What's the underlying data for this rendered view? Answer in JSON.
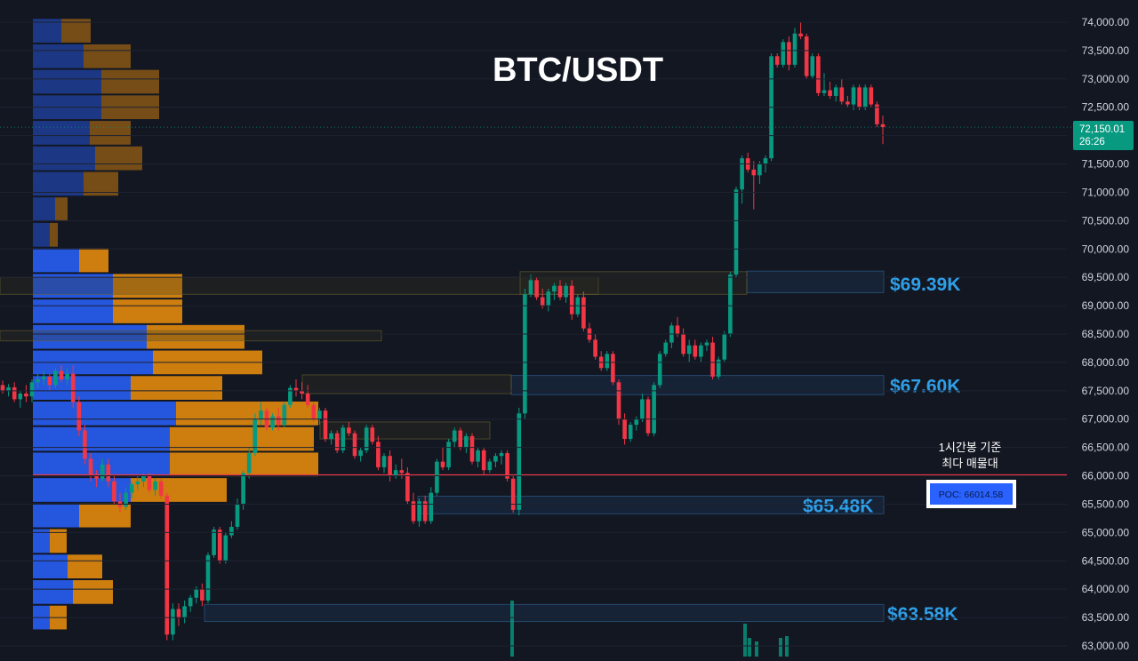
{
  "chart_data": {
    "type": "candlestick",
    "title": "BTC/USDT",
    "y_axis": {
      "ylim": [
        62900,
        74050
      ],
      "ticks": [
        63000,
        63500,
        64000,
        64500,
        65000,
        65500,
        66000,
        66500,
        67000,
        67500,
        68000,
        68500,
        69000,
        69500,
        70000,
        70500,
        71000,
        71500,
        72000,
        72500,
        73000,
        73500,
        74000
      ],
      "tick_labels": [
        "63,000.00",
        "63,500.00",
        "64,000.00",
        "64,500.00",
        "65,000.00",
        "65,500.00",
        "66,000.00",
        "66,500.00",
        "67,000.00",
        "67,500.00",
        "68,000.00",
        "68,500.00",
        "69,000.00",
        "69,500.00",
        "70,000.00",
        "70,500.00",
        "71,000.00",
        "71,500.00",
        "72,000.00",
        "72,500.00",
        "73,000.00",
        "73,500.00",
        "74,000.00"
      ]
    },
    "last_price": {
      "value": 72150.01,
      "label": "72,150.01",
      "countdown": "26:26",
      "color": "#089981"
    },
    "poc": {
      "value": 66014.58,
      "label": "POC: 66014.58",
      "annotation_line1": "1시간봉 기준",
      "annotation_line2": "최다 매물대",
      "color": "#f23645"
    },
    "levels": [
      {
        "value": 69390,
        "label": "$69.39K",
        "zone": [
          69230,
          69610
        ]
      },
      {
        "value": 67600,
        "label": "$67.60K",
        "zone": [
          67430,
          67770
        ]
      },
      {
        "value": 65480,
        "label": "$65.48K",
        "zone": [
          65330,
          65640
        ]
      },
      {
        "value": 63580,
        "label": "$63.58K",
        "zone": [
          63430,
          63730
        ]
      }
    ],
    "candles": [
      [
        67600,
        67680,
        67450,
        67500
      ],
      [
        67500,
        67620,
        67400,
        67560
      ],
      [
        67560,
        67650,
        67300,
        67350
      ],
      [
        67350,
        67500,
        67200,
        67450
      ],
      [
        67450,
        67600,
        67300,
        67400
      ],
      [
        67400,
        67700,
        67300,
        67650
      ],
      [
        67650,
        67800,
        67550,
        67700
      ],
      [
        67700,
        67850,
        67600,
        67750
      ],
      [
        67750,
        67800,
        67500,
        67600
      ],
      [
        67600,
        67900,
        67550,
        67850
      ],
      [
        67850,
        67950,
        67650,
        67700
      ],
      [
        67700,
        67900,
        67600,
        67800
      ],
      [
        67800,
        67950,
        67200,
        67300
      ],
      [
        67300,
        67400,
        66700,
        66800
      ],
      [
        66800,
        66900,
        66200,
        66300
      ],
      [
        66300,
        66400,
        65900,
        66000
      ],
      [
        66000,
        66100,
        65800,
        65950
      ],
      [
        65950,
        66300,
        65900,
        66200
      ],
      [
        66200,
        66300,
        65800,
        65900
      ],
      [
        65900,
        66000,
        65500,
        65550
      ],
      [
        65550,
        65700,
        65350,
        65450
      ],
      [
        65450,
        65800,
        65400,
        65700
      ],
      [
        65700,
        65900,
        65600,
        65850
      ],
      [
        65850,
        66000,
        65750,
        65900
      ],
      [
        65900,
        66050,
        65800,
        66000
      ],
      [
        66000,
        66050,
        65700,
        65750
      ],
      [
        65750,
        65950,
        65650,
        65900
      ],
      [
        65900,
        65950,
        65600,
        65650
      ],
      [
        65650,
        65700,
        63100,
        63200
      ],
      [
        63200,
        63750,
        63100,
        63650
      ],
      [
        63650,
        63750,
        63350,
        63500
      ],
      [
        63500,
        63800,
        63400,
        63700
      ],
      [
        63700,
        63900,
        63600,
        63850
      ],
      [
        63850,
        64050,
        63750,
        64000
      ],
      [
        64000,
        64100,
        63700,
        63800
      ],
      [
        63800,
        64650,
        63750,
        64600
      ],
      [
        64600,
        65100,
        64550,
        65050
      ],
      [
        65050,
        65100,
        64450,
        64500
      ],
      [
        64500,
        65000,
        64450,
        64950
      ],
      [
        64950,
        65200,
        64900,
        65100
      ],
      [
        65100,
        65600,
        65050,
        65500
      ],
      [
        65500,
        66100,
        65400,
        66050
      ],
      [
        66050,
        66500,
        65950,
        66400
      ],
      [
        66400,
        67100,
        66350,
        67000
      ],
      [
        67000,
        67300,
        66900,
        67150
      ],
      [
        67150,
        67200,
        66800,
        66850
      ],
      [
        66850,
        67100,
        66800,
        67050
      ],
      [
        67050,
        67200,
        66800,
        66900
      ],
      [
        66900,
        67300,
        66850,
        67250
      ],
      [
        67250,
        67600,
        67200,
        67550
      ],
      [
        67550,
        67700,
        67400,
        67500
      ],
      [
        67500,
        67650,
        67350,
        67450
      ],
      [
        67450,
        67600,
        67200,
        67250
      ],
      [
        67250,
        67300,
        66950,
        67000
      ],
      [
        67000,
        67200,
        66900,
        67150
      ],
      [
        67150,
        67200,
        66600,
        66650
      ],
      [
        66650,
        66800,
        66550,
        66750
      ],
      [
        66750,
        66800,
        66400,
        66450
      ],
      [
        66450,
        66900,
        66400,
        66850
      ],
      [
        66850,
        66950,
        66700,
        66750
      ],
      [
        66750,
        66800,
        66300,
        66350
      ],
      [
        66350,
        66500,
        66250,
        66450
      ],
      [
        66450,
        66900,
        66400,
        66850
      ],
      [
        66850,
        66900,
        66550,
        66600
      ],
      [
        66600,
        66700,
        66100,
        66150
      ],
      [
        66150,
        66400,
        66050,
        66350
      ],
      [
        66350,
        66450,
        65900,
        66000
      ],
      [
        66000,
        66200,
        65950,
        66100
      ],
      [
        66100,
        66300,
        65950,
        66050
      ],
      [
        66050,
        66150,
        65500,
        65550
      ],
      [
        65550,
        65700,
        65150,
        65200
      ],
      [
        65200,
        65600,
        65100,
        65550
      ],
      [
        65550,
        65650,
        65150,
        65200
      ],
      [
        65200,
        65800,
        65150,
        65700
      ],
      [
        65700,
        66300,
        65650,
        66250
      ],
      [
        66250,
        66500,
        66100,
        66150
      ],
      [
        66150,
        66650,
        66100,
        66600
      ],
      [
        66600,
        66850,
        66500,
        66800
      ],
      [
        66800,
        66850,
        66450,
        66500
      ],
      [
        66500,
        66750,
        66400,
        66700
      ],
      [
        66700,
        66750,
        66200,
        66250
      ],
      [
        66250,
        66500,
        66150,
        66450
      ],
      [
        66450,
        66500,
        66000,
        66100
      ],
      [
        66100,
        66300,
        66050,
        66250
      ],
      [
        66250,
        66400,
        66150,
        66350
      ],
      [
        66350,
        66450,
        66200,
        66400
      ],
      [
        66400,
        66450,
        65900,
        65950
      ],
      [
        65950,
        66000,
        65350,
        65400
      ],
      [
        65400,
        67200,
        65300,
        67100
      ],
      [
        67100,
        69300,
        67000,
        69200
      ],
      [
        69200,
        69550,
        69150,
        69450
      ],
      [
        69450,
        69500,
        69100,
        69150
      ],
      [
        69150,
        69300,
        68950,
        69000
      ],
      [
        69000,
        69300,
        68900,
        69250
      ],
      [
        69250,
        69400,
        69100,
        69350
      ],
      [
        69350,
        69450,
        69100,
        69150
      ],
      [
        69150,
        69400,
        69050,
        69350
      ],
      [
        69350,
        69450,
        68750,
        68850
      ],
      [
        68850,
        69200,
        68800,
        69150
      ],
      [
        69150,
        69250,
        68550,
        68600
      ],
      [
        68600,
        68700,
        68350,
        68400
      ],
      [
        68400,
        68500,
        68050,
        68100
      ],
      [
        68100,
        68200,
        67850,
        67900
      ],
      [
        67900,
        68200,
        67850,
        68150
      ],
      [
        68150,
        68200,
        67600,
        67650
      ],
      [
        67650,
        67700,
        66900,
        67000
      ],
      [
        67000,
        67100,
        66550,
        66650
      ],
      [
        66650,
        66950,
        66600,
        66900
      ],
      [
        66900,
        67050,
        66800,
        67000
      ],
      [
        67000,
        67450,
        66950,
        67350
      ],
      [
        67350,
        67400,
        66700,
        66750
      ],
      [
        66750,
        67650,
        66700,
        67600
      ],
      [
        67600,
        68200,
        67550,
        68150
      ],
      [
        68150,
        68400,
        68100,
        68350
      ],
      [
        68350,
        68700,
        68250,
        68650
      ],
      [
        68650,
        68800,
        68450,
        68500
      ],
      [
        68500,
        68600,
        68100,
        68150
      ],
      [
        68150,
        68400,
        68000,
        68300
      ],
      [
        68300,
        68400,
        68050,
        68100
      ],
      [
        68100,
        68350,
        68000,
        68300
      ],
      [
        68300,
        68400,
        68200,
        68350
      ],
      [
        68350,
        68450,
        67700,
        67750
      ],
      [
        67750,
        68100,
        67700,
        68050
      ],
      [
        68050,
        68550,
        68000,
        68500
      ],
      [
        68500,
        69600,
        68450,
        69550
      ],
      [
        69550,
        71100,
        69500,
        71050
      ],
      [
        71050,
        71650,
        70800,
        71600
      ],
      [
        71600,
        71700,
        71350,
        71400
      ],
      [
        71400,
        71550,
        70700,
        71300
      ],
      [
        71300,
        71550,
        71150,
        71500
      ],
      [
        71500,
        71650,
        71350,
        71600
      ],
      [
        71600,
        73450,
        71550,
        73400
      ],
      [
        73400,
        73450,
        73200,
        73250
      ],
      [
        73250,
        73700,
        73200,
        73650
      ],
      [
        73650,
        73750,
        73150,
        73250
      ],
      [
        73250,
        73900,
        73200,
        73800
      ],
      [
        73800,
        74000,
        73700,
        73750
      ],
      [
        73750,
        73800,
        73000,
        73050
      ],
      [
        73050,
        73450,
        73000,
        73400
      ],
      [
        73400,
        73450,
        72700,
        72750
      ],
      [
        72750,
        73100,
        72700,
        72800
      ],
      [
        72800,
        72950,
        72650,
        72700
      ],
      [
        72700,
        72900,
        72600,
        72850
      ],
      [
        72850,
        73000,
        72550,
        72600
      ],
      [
        72600,
        72700,
        72500,
        72550
      ],
      [
        72550,
        72900,
        72450,
        72850
      ],
      [
        72850,
        72900,
        72450,
        72500
      ],
      [
        72500,
        72900,
        72450,
        72850
      ],
      [
        72850,
        72900,
        72500,
        72550
      ],
      [
        72550,
        72600,
        72150,
        72200
      ],
      [
        72200,
        72350,
        71850,
        72150
      ]
    ],
    "volume_profile": [
      {
        "price": 73850,
        "buy": 32,
        "sell": 33
      },
      {
        "price": 73400,
        "buy": 57,
        "sell": 53
      },
      {
        "price": 72950,
        "buy": 77,
        "sell": 65
      },
      {
        "price": 72500,
        "buy": 77,
        "sell": 65
      },
      {
        "price": 72050,
        "buy": 64,
        "sell": 46
      },
      {
        "price": 71600,
        "buy": 70,
        "sell": 53
      },
      {
        "price": 71150,
        "buy": 57,
        "sell": 39
      },
      {
        "price": 70700,
        "buy": 25,
        "sell": 14
      },
      {
        "price": 70250,
        "buy": 19,
        "sell": 9
      },
      {
        "price": 69800,
        "buy": 52,
        "sell": 33
      },
      {
        "price": 69350,
        "buy": 90,
        "sell": 78
      },
      {
        "price": 68900,
        "buy": 90,
        "sell": 78
      },
      {
        "price": 68450,
        "buy": 128,
        "sell": 110
      },
      {
        "price": 68000,
        "buy": 135,
        "sell": 123
      },
      {
        "price": 67550,
        "buy": 110,
        "sell": 103
      },
      {
        "price": 67100,
        "buy": 161,
        "sell": 160
      },
      {
        "price": 66650,
        "buy": 154,
        "sell": 162
      },
      {
        "price": 66200,
        "buy": 154,
        "sell": 167
      },
      {
        "price": 65750,
        "buy": 110,
        "sell": 108
      },
      {
        "price": 65300,
        "buy": 52,
        "sell": 58
      },
      {
        "price": 64850,
        "buy": 19,
        "sell": 19
      },
      {
        "price": 64400,
        "buy": 39,
        "sell": 39
      },
      {
        "price": 63950,
        "buy": 45,
        "sell": 45
      },
      {
        "price": 63500,
        "buy": 19,
        "sell": 19
      }
    ],
    "colors": {
      "background": "#131722",
      "up": "#089981",
      "down": "#f23645",
      "level_text": "#2f9fe8",
      "vp_buy": "#2962ff",
      "vp_sell": "#f0900a",
      "axis_text": "#d1d4dc"
    }
  }
}
